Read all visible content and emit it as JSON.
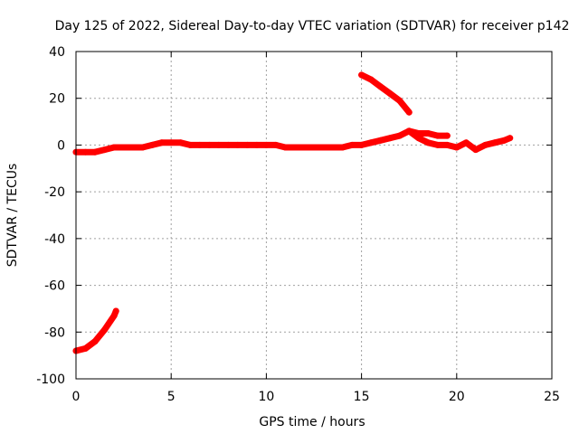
{
  "chart_data": {
    "type": "scatter",
    "title": "Day 125 of 2022, Sidereal Day-to-day VTEC variation (SDTVAR) for receiver p142",
    "xlabel": "GPS time / hours",
    "ylabel": "SDTVAR / TECUs",
    "xlim": [
      0,
      25
    ],
    "ylim": [
      -100,
      40
    ],
    "xticks": [
      0,
      5,
      10,
      15,
      20,
      25
    ],
    "yticks": [
      -100,
      -80,
      -60,
      -40,
      -20,
      0,
      20,
      40
    ],
    "grid": true,
    "legend": "none",
    "series_color": "#ff0000",
    "series": [
      {
        "name": "main-trace",
        "x": [
          0.0,
          0.5,
          1.0,
          1.5,
          2.0,
          2.5,
          3.0,
          3.5,
          4.0,
          4.5,
          5.0,
          5.5,
          6.0,
          6.5,
          7.0,
          7.5,
          8.0,
          8.5,
          9.0,
          9.5,
          10.0,
          10.5,
          11.0,
          11.5,
          12.0,
          12.5,
          13.0,
          13.5,
          14.0,
          14.5,
          15.0,
          15.5,
          16.0,
          16.5,
          17.0,
          17.5,
          18.0,
          18.5,
          19.0,
          19.5
        ],
        "y": [
          -3,
          -3,
          -3,
          -2,
          -1,
          -1,
          -1,
          -1,
          0,
          1,
          1,
          1,
          0,
          0,
          0,
          0,
          0,
          0,
          0,
          0,
          0,
          0,
          -1,
          -1,
          -1,
          -1,
          -1,
          -1,
          -1,
          0,
          0,
          1,
          2,
          3,
          4,
          6,
          5,
          5,
          4,
          4
        ]
      },
      {
        "name": "late-trace-lower",
        "x": [
          17.5,
          18.0,
          18.5,
          19.0,
          19.5,
          20.0,
          20.5,
          21.0,
          21.5,
          22.0,
          22.5,
          22.8
        ],
        "y": [
          6,
          3,
          1,
          0,
          0,
          -1,
          1,
          -2,
          0,
          1,
          2,
          3
        ]
      },
      {
        "name": "early-trace",
        "x": [
          0.0,
          0.5,
          1.0,
          1.5,
          2.0,
          2.1
        ],
        "y": [
          -88,
          -87,
          -84,
          -79,
          -73,
          -71
        ]
      },
      {
        "name": "arc-trace",
        "x": [
          15.0,
          15.5,
          16.0,
          16.5,
          17.0,
          17.5
        ],
        "y": [
          30,
          28,
          25,
          22,
          19,
          14
        ]
      }
    ]
  }
}
